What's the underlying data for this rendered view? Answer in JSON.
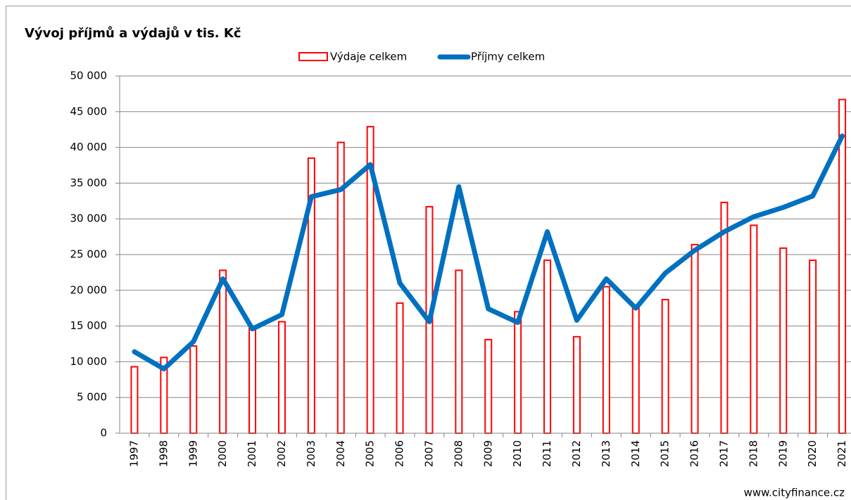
{
  "chart_data": {
    "type": "bar_line",
    "title": "Vývoj příjmů a výdajů v tis. Kč",
    "source": "www.cityfinance.cz",
    "categories": [
      "1997",
      "1998",
      "1999",
      "2000",
      "2001",
      "2002",
      "2003",
      "2004",
      "2005",
      "2006",
      "2007",
      "2008",
      "2009",
      "2010",
      "2011",
      "2012",
      "2013",
      "2014",
      "2015",
      "2016",
      "2017",
      "2018",
      "2019",
      "2020",
      "2021"
    ],
    "series": [
      {
        "name": "Výdaje celkem",
        "type": "bar",
        "color": "#ff0000",
        "values": [
          9300,
          10600,
          12200,
          22800,
          15000,
          15600,
          38500,
          40700,
          42900,
          18200,
          31700,
          22800,
          13100,
          17000,
          24200,
          13500,
          20500,
          17500,
          18700,
          26400,
          32300,
          29100,
          25900,
          24200,
          46700
        ]
      },
      {
        "name": "Příjmy celkem",
        "type": "line",
        "color": "#0070c0",
        "values": [
          11400,
          9000,
          12800,
          21600,
          14600,
          16600,
          33100,
          34100,
          37600,
          21000,
          15600,
          34500,
          17400,
          15500,
          28200,
          15800,
          21600,
          17500,
          22400,
          25600,
          28200,
          30300,
          31600,
          33200,
          41600
        ]
      }
    ],
    "ylim": [
      0,
      50000
    ],
    "yticks": [
      0,
      {
        "value": 5000,
        "label": "5 000"
      },
      {
        "value": 10000,
        "label": "10 000"
      },
      {
        "value": 15000,
        "label": "15 000"
      },
      {
        "value": 20000,
        "label": "20 000"
      },
      {
        "value": 25000,
        "label": "25 000"
      },
      {
        "value": 30000,
        "label": "30 000"
      },
      {
        "value": 35000,
        "label": "35 000"
      },
      {
        "value": 40000,
        "label": "40 000"
      },
      {
        "value": 45000,
        "label": "45 000"
      },
      {
        "value": 50000,
        "label": "50 000"
      }
    ],
    "grid": true,
    "legend": "top"
  }
}
